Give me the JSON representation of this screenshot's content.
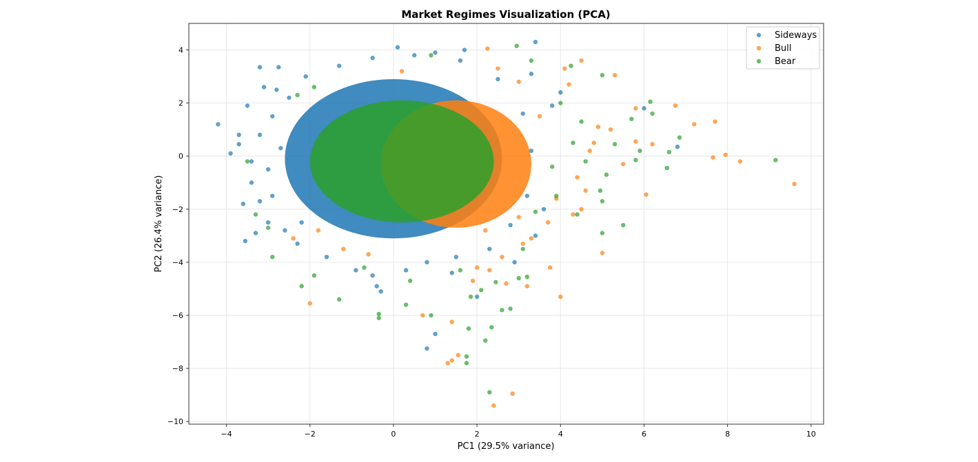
{
  "chart_data": {
    "type": "scatter",
    "title": "Market Regimes Visualization (PCA)",
    "xlabel": "PC1 (29.5% variance)",
    "ylabel": "PC2 (26.4% variance)",
    "xlim": [
      -4.9,
      10.3
    ],
    "ylim": [
      -10.1,
      5.0
    ],
    "xticks": [
      -4,
      -2,
      0,
      2,
      4,
      6,
      8,
      10
    ],
    "yticks": [
      -10,
      -8,
      -6,
      -4,
      -2,
      0,
      2,
      4
    ],
    "grid": true,
    "legend_position": "top-right",
    "series": [
      {
        "name": "Sideways",
        "color": "#1f77b4",
        "dense_core": {
          "center": [
            0.0,
            -0.1
          ],
          "spread": [
            2.6,
            3.0
          ]
        },
        "points": [
          [
            -4.2,
            1.2
          ],
          [
            -3.9,
            0.1
          ],
          [
            -3.7,
            0.45
          ],
          [
            -3.55,
            -3.2
          ],
          [
            -3.2,
            3.35
          ],
          [
            -2.75,
            3.35
          ],
          [
            -3.3,
            -2.9
          ],
          [
            -3.6,
            -1.8
          ],
          [
            0.1,
            4.1
          ],
          [
            1.7,
            4.0
          ],
          [
            3.4,
            4.3
          ],
          [
            6.8,
            0.35
          ],
          [
            6.0,
            1.8
          ],
          [
            1.0,
            -6.7
          ],
          [
            0.8,
            -7.25
          ],
          [
            -0.4,
            -4.9
          ],
          [
            2.9,
            -4.0
          ],
          [
            1.4,
            -4.4
          ],
          [
            -0.3,
            -5.1
          ],
          [
            2.0,
            -5.3
          ],
          [
            -3.0,
            -2.5
          ],
          [
            -3.5,
            1.9
          ],
          [
            -3.4,
            -1.0
          ],
          [
            -2.8,
            2.5
          ],
          [
            1.0,
            3.9
          ],
          [
            3.3,
            3.1
          ],
          [
            -3.1,
            2.6
          ],
          [
            -2.9,
            1.5
          ],
          [
            -3.0,
            -0.5
          ],
          [
            -3.2,
            0.8
          ],
          [
            -2.9,
            -1.5
          ],
          [
            -2.6,
            -2.8
          ],
          [
            -2.3,
            -3.3
          ],
          [
            -1.6,
            -3.8
          ],
          [
            -0.9,
            -4.3
          ],
          [
            -0.5,
            -4.5
          ],
          [
            0.3,
            -4.3
          ],
          [
            0.8,
            -4.0
          ],
          [
            1.5,
            -3.8
          ],
          [
            2.3,
            -3.5
          ],
          [
            2.8,
            -2.6
          ],
          [
            3.2,
            -1.5
          ],
          [
            3.3,
            0.2
          ],
          [
            3.1,
            1.6
          ],
          [
            2.5,
            2.9
          ],
          [
            1.6,
            3.6
          ],
          [
            0.5,
            3.8
          ],
          [
            -0.5,
            3.7
          ],
          [
            -1.3,
            3.4
          ],
          [
            -2.1,
            3.0
          ],
          [
            -2.5,
            2.2
          ],
          [
            -3.4,
            -0.2
          ],
          [
            -3.7,
            0.8
          ],
          [
            -3.2,
            -1.7
          ],
          [
            -2.7,
            0.3
          ],
          [
            -2.2,
            -2.5
          ],
          [
            3.6,
            -2.0
          ],
          [
            3.4,
            -3.0
          ],
          [
            4.0,
            2.4
          ],
          [
            3.8,
            1.9
          ]
        ]
      },
      {
        "name": "Bull",
        "color": "#ff7f0e",
        "dense_core": {
          "center": [
            1.5,
            -0.3
          ],
          "spread": [
            1.8,
            2.4
          ]
        },
        "points": [
          [
            9.6,
            -1.05
          ],
          [
            8.3,
            -0.2
          ],
          [
            7.95,
            0.05
          ],
          [
            7.65,
            -0.05
          ],
          [
            7.7,
            1.3
          ],
          [
            7.2,
            1.2
          ],
          [
            6.75,
            1.9
          ],
          [
            6.2,
            0.45
          ],
          [
            6.05,
            -1.45
          ],
          [
            5.8,
            0.55
          ],
          [
            5.8,
            1.8
          ],
          [
            5.0,
            -3.65
          ],
          [
            4.0,
            -5.3
          ],
          [
            3.75,
            -4.2
          ],
          [
            2.4,
            -9.4
          ],
          [
            2.85,
            -8.95
          ],
          [
            1.4,
            -6.25
          ],
          [
            1.3,
            -7.8
          ],
          [
            1.4,
            -7.7
          ],
          [
            1.55,
            -7.5
          ],
          [
            0.7,
            -6.0
          ],
          [
            -2.0,
            -5.55
          ],
          [
            5.3,
            3.05
          ],
          [
            4.1,
            3.3
          ],
          [
            4.5,
            3.6
          ],
          [
            2.25,
            4.05
          ],
          [
            4.9,
            1.1
          ],
          [
            4.7,
            0.2
          ],
          [
            5.2,
            1.0
          ],
          [
            4.4,
            -0.8
          ],
          [
            4.6,
            -1.3
          ],
          [
            3.9,
            -1.6
          ],
          [
            4.3,
            -2.2
          ],
          [
            3.3,
            -3.1
          ],
          [
            3.7,
            -2.5
          ],
          [
            2.6,
            -3.8
          ],
          [
            3.1,
            -3.3
          ],
          [
            2.7,
            -4.8
          ],
          [
            2.3,
            -4.3
          ],
          [
            1.9,
            -4.7
          ],
          [
            2.0,
            -4.2
          ],
          [
            3.2,
            -4.9
          ],
          [
            2.2,
            -2.8
          ],
          [
            3.0,
            -2.3
          ],
          [
            3.5,
            1.5
          ],
          [
            4.2,
            2.7
          ],
          [
            3.0,
            2.8
          ],
          [
            2.5,
            3.3
          ],
          [
            -1.8,
            -2.8
          ],
          [
            -2.4,
            -3.1
          ],
          [
            -1.2,
            -3.5
          ],
          [
            0.2,
            3.2
          ],
          [
            -0.6,
            -3.7
          ],
          [
            4.8,
            0.5
          ],
          [
            5.5,
            -0.3
          ],
          [
            4.5,
            -2.0
          ]
        ]
      },
      {
        "name": "Bear",
        "color": "#2ca02c",
        "dense_core": {
          "center": [
            0.2,
            -0.2
          ],
          "spread": [
            2.2,
            2.3
          ]
        },
        "points": [
          [
            9.15,
            -0.15
          ],
          [
            6.85,
            0.7
          ],
          [
            6.6,
            0.15
          ],
          [
            6.55,
            -0.45
          ],
          [
            6.15,
            2.05
          ],
          [
            6.2,
            1.6
          ],
          [
            5.5,
            -2.6
          ],
          [
            5.0,
            -2.9
          ],
          [
            4.95,
            -1.3
          ],
          [
            4.4,
            -2.2
          ],
          [
            5.1,
            -0.7
          ],
          [
            5.3,
            0.45
          ],
          [
            5.8,
            -0.15
          ],
          [
            5.7,
            1.4
          ],
          [
            5.9,
            0.2
          ],
          [
            2.3,
            -8.9
          ],
          [
            2.2,
            -6.95
          ],
          [
            2.35,
            -6.45
          ],
          [
            1.75,
            -7.8
          ],
          [
            1.75,
            -7.55
          ],
          [
            1.8,
            -6.5
          ],
          [
            0.9,
            -6.0
          ],
          [
            -0.35,
            -5.95
          ],
          [
            -0.35,
            -6.1
          ],
          [
            2.8,
            -5.75
          ],
          [
            2.6,
            -5.8
          ],
          [
            2.45,
            -4.75
          ],
          [
            3.2,
            -4.55
          ],
          [
            3.0,
            -4.6
          ],
          [
            2.1,
            -5.05
          ],
          [
            1.85,
            -5.3
          ],
          [
            0.3,
            -5.6
          ],
          [
            -2.2,
            -4.9
          ],
          [
            -1.9,
            -4.5
          ],
          [
            -2.9,
            -3.8
          ],
          [
            -3.5,
            -0.2
          ],
          [
            -3.3,
            -2.2
          ],
          [
            -3.0,
            -2.7
          ],
          [
            2.95,
            4.15
          ],
          [
            3.3,
            3.6
          ],
          [
            4.25,
            3.4
          ],
          [
            5.0,
            3.05
          ],
          [
            4.0,
            2.0
          ],
          [
            4.5,
            1.3
          ],
          [
            4.3,
            0.5
          ],
          [
            3.8,
            -0.4
          ],
          [
            3.9,
            -1.5
          ],
          [
            3.4,
            -2.1
          ],
          [
            3.1,
            -3.5
          ],
          [
            0.9,
            3.8
          ],
          [
            -1.9,
            2.6
          ],
          [
            -2.3,
            2.3
          ],
          [
            1.6,
            -4.3
          ],
          [
            0.4,
            -4.7
          ],
          [
            -0.7,
            -4.2
          ],
          [
            -1.3,
            -5.4
          ],
          [
            4.6,
            -0.2
          ],
          [
            5.0,
            -1.7
          ]
        ]
      }
    ]
  }
}
